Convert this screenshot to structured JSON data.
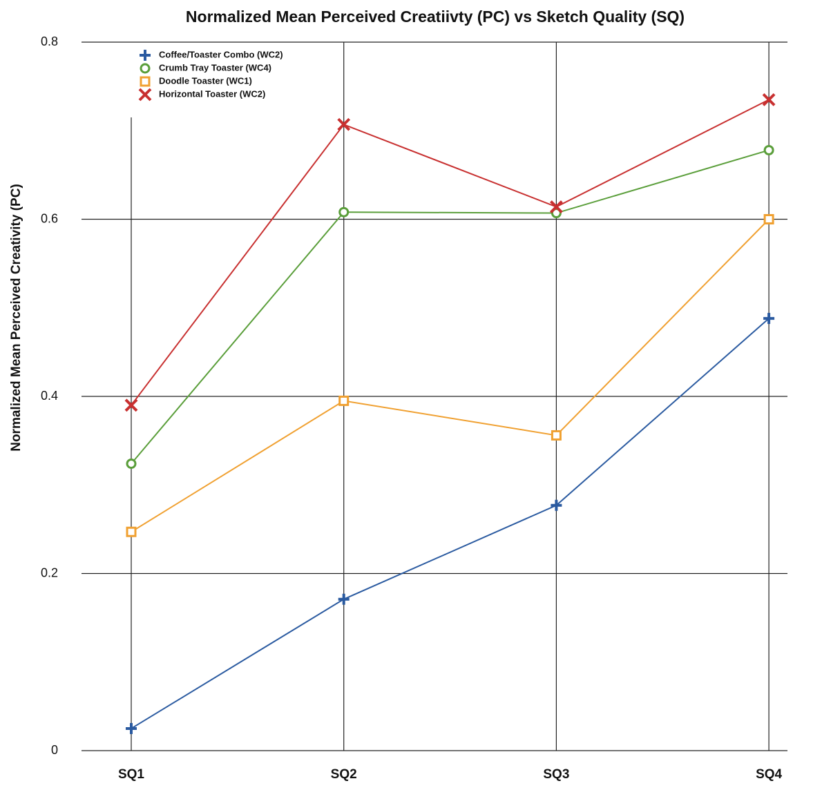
{
  "chart_data": {
    "type": "line",
    "title": "Normalized Mean Perceived Creatiivty (PC) vs Sketch Quality (SQ)",
    "y_label": "Normalized Mean Perceived Creativity (PC)",
    "categories": [
      "SQ1",
      "SQ2",
      "SQ3",
      "SQ4"
    ],
    "series": [
      {
        "name": "Coffee/Toaster Combo (WC2)",
        "color": "#2a5aa0",
        "marker": "plus",
        "values": [
          0.025,
          0.171,
          0.277,
          0.488
        ]
      },
      {
        "name": "Crumb Tray Toaster (WC4)",
        "color": "#5a9e3a",
        "marker": "circle",
        "values": [
          0.324,
          0.608,
          0.607,
          0.678
        ]
      },
      {
        "name": "Doodle Toaster (WC1)",
        "color": "#f0a030",
        "marker": "square",
        "values": [
          0.247,
          0.395,
          0.356,
          0.6
        ]
      },
      {
        "name": "Horizontal Toaster (WC2)",
        "color": "#c83030",
        "marker": "x",
        "values": [
          0.39,
          0.707,
          0.614,
          0.735
        ]
      }
    ],
    "ylim": [
      0,
      0.8
    ],
    "yticks": [
      0,
      0.2,
      0.4,
      0.6,
      0.8
    ],
    "grid": true,
    "legend": "upper left"
  }
}
